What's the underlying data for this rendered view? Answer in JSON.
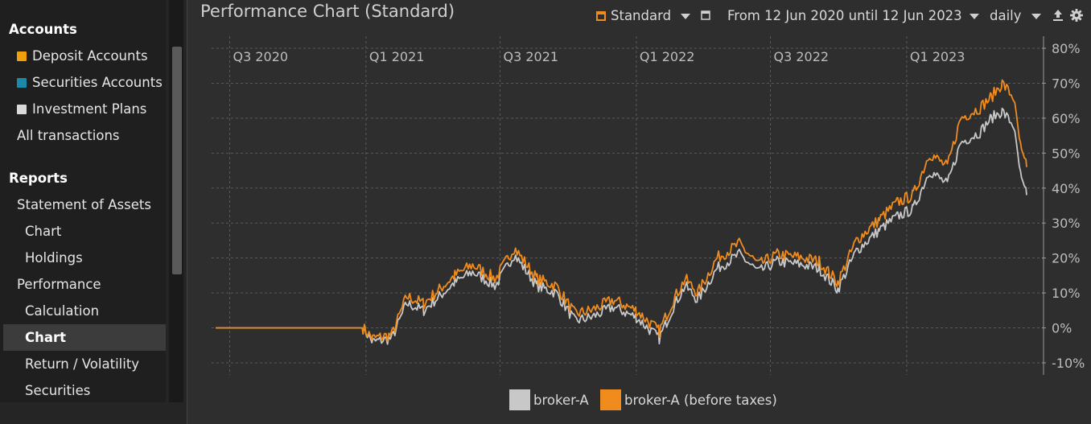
{
  "sidebar": {
    "accounts_heading": "Accounts",
    "deposit_accounts": {
      "label": "Deposit Accounts",
      "color": "#f0a00a"
    },
    "securities_accounts": {
      "label": "Securities Accounts",
      "color": "#1a8aa8"
    },
    "investment_plans": {
      "label": "Investment Plans",
      "color": "#d9d9d9"
    },
    "all_transactions": "All transactions",
    "reports_heading": "Reports",
    "statement_of_assets": "Statement of Assets",
    "soa_chart": "Chart",
    "holdings": "Holdings",
    "performance": "Performance",
    "calculation": "Calculation",
    "perf_chart": "Chart",
    "return_volatility": "Return / Volatility",
    "securities": "Securities"
  },
  "header": {
    "title": "Performance Chart (Standard)",
    "config_label": "Standard",
    "period_label": "From 12 Jun 2020 until 12 Jun 2023",
    "interval_label": "daily",
    "accent": "#f08c1e"
  },
  "chart_data": {
    "type": "line",
    "x_range": [
      "2020-06-12",
      "2023-06-12"
    ],
    "x_tick_labels": [
      "Q3 2020",
      "Q1 2021",
      "Q3 2021",
      "Q1 2022",
      "Q3 2022",
      "Q1 2023"
    ],
    "y_tick_labels": [
      "80%",
      "70%",
      "60%",
      "50%",
      "40%",
      "30%",
      "20%",
      "10%",
      "0%",
      "-10%"
    ],
    "ylim": [
      -12,
      81
    ],
    "grid": true,
    "legend_placement": "bottom",
    "x": [
      "2020-06-12",
      "2020-08-12",
      "2020-10-12",
      "2020-12-28",
      "2021-01-10",
      "2021-02-05",
      "2021-02-25",
      "2021-03-20",
      "2021-04-10",
      "2021-05-01",
      "2021-05-25",
      "2021-06-25",
      "2021-07-20",
      "2021-08-20",
      "2021-09-15",
      "2021-10-10",
      "2021-11-01",
      "2021-12-01",
      "2022-01-01",
      "2022-02-01",
      "2022-02-20",
      "2022-03-08",
      "2022-03-25",
      "2022-04-20",
      "2022-05-20",
      "2022-06-15",
      "2022-07-10",
      "2022-08-15",
      "2022-09-05",
      "2022-09-30",
      "2022-10-25",
      "2022-11-25",
      "2022-12-20",
      "2023-01-10",
      "2023-02-01",
      "2023-02-25",
      "2023-03-15",
      "2023-04-10",
      "2023-04-25",
      "2023-05-10",
      "2023-05-25",
      "2023-06-05",
      "2023-06-12"
    ],
    "series": [
      {
        "name": "broker-A",
        "color": "#c8c8c8",
        "values": [
          0,
          0,
          0,
          0,
          -4,
          -3,
          7,
          5,
          9,
          13,
          16,
          12,
          21,
          12,
          10,
          2,
          3,
          6,
          3,
          -3,
          6,
          12,
          8,
          17,
          21,
          16,
          19,
          18,
          17,
          11,
          22,
          28,
          32,
          34,
          45,
          41,
          53,
          56,
          60,
          62,
          58,
          42,
          38
        ]
      },
      {
        "name": "broker-A (before taxes)",
        "color": "#f08c1e",
        "values": [
          0,
          0,
          0,
          0,
          -3,
          -2,
          9,
          7,
          11,
          15,
          18,
          14,
          23,
          14,
          12,
          4,
          5,
          8,
          5,
          -1,
          8,
          14,
          10,
          20,
          24,
          18,
          21,
          20,
          19,
          13,
          25,
          31,
          36,
          38,
          50,
          46,
          60,
          63,
          66,
          70,
          66,
          50,
          46
        ]
      }
    ]
  }
}
